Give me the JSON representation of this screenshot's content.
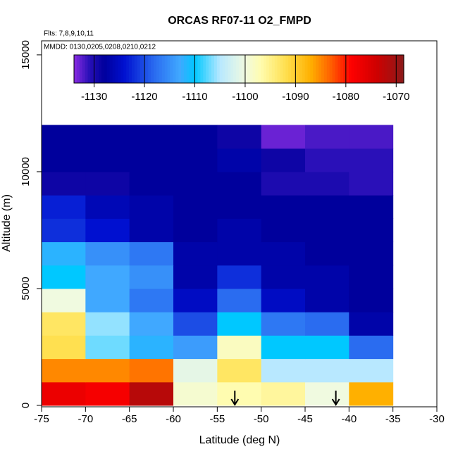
{
  "chart_data": {
    "type": "heatmap",
    "title": "ORCAS RF07-11 O2_FMPD",
    "subtitle_flights": "Flts: 7,8,9,10,11",
    "subtitle_dates": "MMDD: 0130,0205,0208,0210,0212",
    "x_label": "Latitude (deg N)",
    "y_label": "Altitude (m)",
    "xlim": [
      -75,
      -30
    ],
    "xticks": [
      -75,
      -70,
      -65,
      -60,
      -55,
      -50,
      -45,
      -40,
      -35,
      -30
    ],
    "ylim": [
      0,
      15600
    ],
    "yticks": [
      0,
      5000,
      10000,
      15000
    ],
    "x_edges": [
      -75,
      -70,
      -65,
      -60,
      -55,
      -50,
      -45,
      -40,
      -35
    ],
    "y_edges": [
      0,
      1000,
      2000,
      3000,
      4000,
      5000,
      6000,
      7000,
      8000,
      9000,
      10000,
      11000,
      12000
    ],
    "values": [
      [
        -1077,
        -1078,
        -1072,
        -1099,
        -1097,
        -1096,
        -1100,
        -1087
      ],
      [
        -1085,
        -1085,
        -1084,
        -1101,
        -1093,
        -1105,
        -1105,
        -1105
      ],
      [
        -1092,
        -1107,
        -1112,
        -1114,
        -1098,
        -1110,
        -1110,
        -1118
      ],
      [
        -1093,
        -1106,
        -1113,
        -1120,
        -1110,
        -1117,
        -1118,
        -1127
      ],
      [
        -1100,
        -1113,
        -1117,
        -1125,
        -1118,
        -1125,
        -1127,
        -1128
      ],
      [
        -1110,
        -1113,
        -1115,
        -1127,
        -1122,
        -1127,
        -1127,
        -1128
      ],
      [
        -1112,
        -1115,
        -1117,
        -1127,
        -1127,
        -1127,
        -1128,
        -1128
      ],
      [
        -1122,
        -1124,
        -1127,
        -1128,
        -1127,
        -1128,
        -1128,
        -1128
      ],
      [
        -1123,
        -1126,
        -1127,
        -1128,
        -1128,
        -1128,
        -1128,
        -1128
      ],
      [
        -1129,
        -1129,
        -1128,
        -1128,
        -1128,
        -1130,
        -1130,
        -1131
      ],
      [
        -1128,
        -1128,
        -1128,
        -1128,
        -1127,
        -1129,
        -1131,
        -1131
      ],
      [
        -1128,
        -1128,
        -1128,
        -1128,
        -1129,
        -1133,
        -1132,
        -1132
      ]
    ],
    "clim": [
      -1134,
      -1068.5
    ],
    "cticks": [
      -1130,
      -1120,
      -1110,
      -1100,
      -1090,
      -1080,
      -1070
    ],
    "colormap": [
      {
        "value": -1134,
        "color": "#8a2be2"
      },
      {
        "value": -1131,
        "color": "#2a10b8"
      },
      {
        "value": -1128,
        "color": "#00009c"
      },
      {
        "value": -1124,
        "color": "#0010d0"
      },
      {
        "value": -1118,
        "color": "#2a6cf0"
      },
      {
        "value": -1113,
        "color": "#40a8ff"
      },
      {
        "value": -1110,
        "color": "#00c8ff"
      },
      {
        "value": -1105,
        "color": "#b8e8ff"
      },
      {
        "value": -1100,
        "color": "#f0fae0"
      },
      {
        "value": -1097,
        "color": "#fffcb0"
      },
      {
        "value": -1092,
        "color": "#ffe050"
      },
      {
        "value": -1087,
        "color": "#ffb000"
      },
      {
        "value": -1083,
        "color": "#ff6000"
      },
      {
        "value": -1079,
        "color": "#ff0000"
      },
      {
        "value": -1074,
        "color": "#d00000"
      },
      {
        "value": -1068.5,
        "color": "#8b1a1a"
      }
    ],
    "arrows_lat": [
      -53,
      -41.5
    ]
  }
}
